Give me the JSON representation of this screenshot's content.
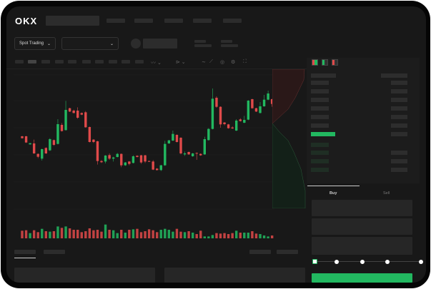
{
  "brand": {
    "logo": "OKX"
  },
  "toolbar": {
    "market_selector": "Spot Trading",
    "market_icon": "chevron-down-icon",
    "pair_icon": "chevron-down-icon"
  },
  "chart_tools": [
    "indicator-icon",
    "line-tool-icon",
    "wave-icon",
    "ruler-icon",
    "camera-icon",
    "settings-icon",
    "fullscreen-icon"
  ],
  "orderbook": {
    "view_icons": [
      "orderbook-both-icon",
      "orderbook-bids-icon",
      "orderbook-asks-icon"
    ],
    "highlight_color": "#22b860"
  },
  "trade": {
    "tabs": [
      {
        "label": "Buy",
        "active": true
      },
      {
        "label": "Sell",
        "active": false
      }
    ],
    "leverage_slider_percent": 0,
    "slider_stops": 5
  },
  "colors": {
    "up": "#22b860",
    "down": "#e04a4a",
    "background": "#181818"
  },
  "chart_data": {
    "type": "candlestick",
    "candles": [
      [
        154,
        146,
        156,
        144
      ],
      [
        154,
        128,
        156,
        126
      ],
      [
        120,
        125,
        126,
        119
      ],
      [
        124,
        82,
        140,
        80
      ],
      [
        80,
        68,
        82,
        62
      ],
      [
        60,
        100,
        102,
        52
      ],
      [
        105,
        82,
        108,
        80
      ],
      [
        95,
        142,
        146,
        92
      ],
      [
        138,
        118,
        140,
        114
      ],
      [
        122,
        205,
        226,
        120
      ],
      [
        202,
        176,
        210,
        174
      ],
      [
        180,
        265,
        303,
        178
      ],
      [
        272,
        258,
        274,
        256
      ],
      [
        262,
        252,
        266,
        250
      ],
      [
        262,
        232,
        276,
        228
      ],
      [
        252,
        245,
        254,
        243
      ],
      [
        255,
        192,
        260,
        190
      ],
      [
        193,
        130,
        195,
        128
      ],
      [
        140,
        130,
        142,
        126
      ],
      [
        133,
        50,
        135,
        35
      ],
      [
        50,
        45,
        54,
        42
      ],
      [
        48,
        73,
        75,
        40
      ],
      [
        75,
        60,
        82,
        55
      ],
      [
        60,
        65,
        68,
        48
      ],
      [
        67,
        80,
        84,
        65
      ],
      [
        80,
        32,
        82,
        24
      ],
      [
        32,
        44,
        46,
        30
      ],
      [
        48,
        38,
        50,
        32
      ],
      [
        42,
        70,
        74,
        40
      ],
      [
        72,
        67,
        74,
        65
      ],
      [
        74,
        44,
        76,
        38
      ],
      [
        74,
        48,
        76,
        42
      ],
      [
        50,
        48,
        52,
        46
      ],
      [
        48,
        14,
        54,
        12
      ],
      [
        18,
        12,
        20,
        10
      ],
      [
        12,
        32,
        34,
        8
      ],
      [
        32,
        122,
        135,
        30
      ],
      [
        124,
        137,
        139,
        122
      ],
      [
        136,
        164,
        178,
        134
      ],
      [
        160,
        130,
        162,
        128
      ],
      [
        148,
        82,
        150,
        78
      ],
      [
        78,
        82,
        90,
        72
      ],
      [
        88,
        78,
        90,
        76
      ],
      [
        70,
        82,
        84,
        68
      ],
      [
        84,
        82,
        86,
        55
      ],
      [
        80,
        74,
        82,
        72
      ],
      [
        78,
        142,
        152,
        76
      ],
      [
        138,
        185,
        188,
        136
      ],
      [
        185,
        312,
        355,
        183
      ],
      [
        316,
        278,
        322,
        274
      ],
      [
        278,
        204,
        280,
        190
      ],
      [
        212,
        205,
        214,
        200
      ],
      [
        204,
        188,
        206,
        186
      ],
      [
        191,
        187,
        196,
        185
      ],
      [
        178,
        220,
        226,
        176
      ],
      [
        225,
        218,
        230,
        216
      ],
      [
        211,
        223,
        240,
        209
      ],
      [
        224,
        304,
        306,
        222
      ],
      [
        310,
        272,
        312,
        270
      ],
      [
        272,
        258,
        274,
        256
      ],
      [
        252,
        280,
        298,
        250
      ],
      [
        280,
        308,
        328,
        278
      ],
      [
        308,
        334,
        346,
        306
      ],
      [
        310,
        290,
        312,
        278
      ],
      [
        284,
        302,
        320,
        282
      ]
    ],
    "volume": [
      32,
      34,
      22,
      34,
      26,
      40,
      30,
      28,
      30,
      50,
      44,
      50,
      42,
      36,
      36,
      26,
      30,
      42,
      34,
      36,
      28,
      58,
      36,
      34,
      22,
      36,
      24,
      36,
      38,
      40,
      26,
      30,
      38,
      34,
      26,
      36,
      40,
      36,
      28,
      40,
      28,
      26,
      30,
      24,
      18,
      32,
      8,
      8,
      14,
      22,
      20,
      22,
      18,
      22,
      32,
      24,
      24,
      24,
      30,
      20,
      18,
      12,
      8,
      12,
      14
    ]
  }
}
